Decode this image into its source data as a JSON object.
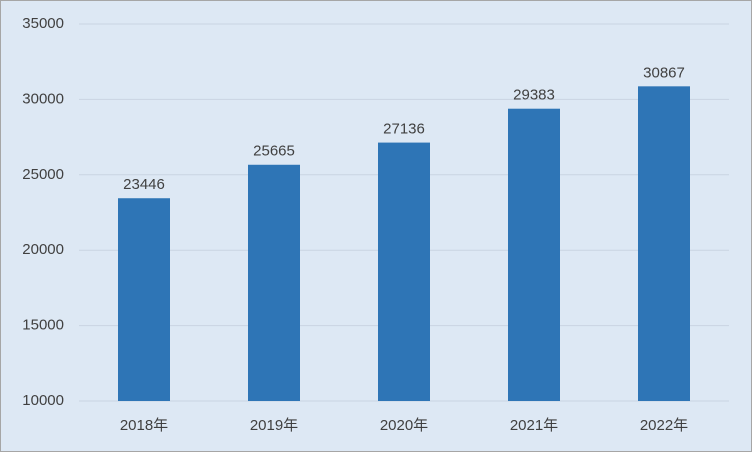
{
  "chart_data": {
    "type": "bar",
    "categories": [
      "2018年",
      "2019年",
      "2020年",
      "2021年",
      "2022年"
    ],
    "values": [
      23446,
      25665,
      27136,
      29383,
      30867
    ],
    "color": "#2e75b6",
    "ylim": [
      10000,
      35000
    ],
    "yticks": [
      10000,
      15000,
      20000,
      25000,
      30000,
      35000
    ],
    "grid": true
  }
}
